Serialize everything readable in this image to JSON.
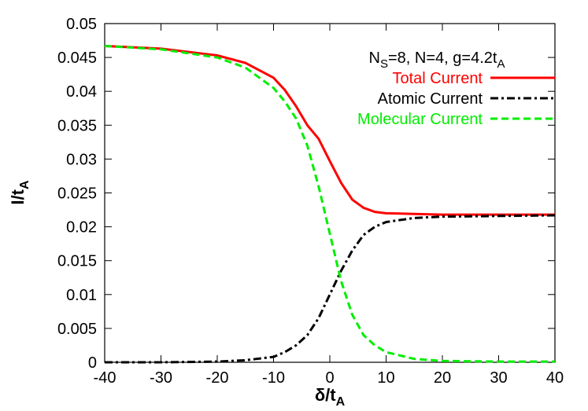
{
  "chart_data": {
    "type": "line",
    "annotation": [
      "N",
      "S",
      "=8, N=4, g=4.2t",
      "A"
    ],
    "xlabel": [
      "δ/t",
      "A"
    ],
    "ylabel": [
      "I/t",
      "A"
    ],
    "x": [
      -40,
      -30,
      -20,
      -15,
      -10,
      -8,
      -6,
      -4,
      -2,
      0,
      2,
      4,
      6,
      8,
      10,
      15,
      20,
      30,
      40
    ],
    "series": [
      {
        "name": "Total Current",
        "color": "#ff0000",
        "dash": "solid",
        "values": [
          0.0467,
          0.0463,
          0.0453,
          0.0442,
          0.042,
          0.0402,
          0.0378,
          0.035,
          0.033,
          0.0297,
          0.0265,
          0.024,
          0.0228,
          0.0222,
          0.022,
          0.0219,
          0.0218,
          0.0218,
          0.0218
        ]
      },
      {
        "name": "Atomic Current",
        "color": "#000000",
        "dash": "dashdot",
        "values": [
          0,
          0,
          0.0001,
          0.0003,
          0.0008,
          0.0015,
          0.0025,
          0.004,
          0.0065,
          0.01,
          0.0135,
          0.0165,
          0.0188,
          0.02,
          0.0207,
          0.0213,
          0.0215,
          0.0216,
          0.0217
        ]
      },
      {
        "name": "Molecular Current",
        "color": "#00ee00",
        "dash": "dashed",
        "values": [
          0.0467,
          0.0462,
          0.045,
          0.0435,
          0.0405,
          0.0385,
          0.036,
          0.032,
          0.026,
          0.019,
          0.012,
          0.007,
          0.004,
          0.0025,
          0.0015,
          0.0005,
          0.0002,
          0.0001,
          0.0001
        ]
      }
    ],
    "xlim": [
      -40,
      40
    ],
    "xticks": [
      -40,
      -30,
      -20,
      -10,
      0,
      10,
      20,
      30,
      40
    ],
    "ylim": [
      0,
      0.05
    ],
    "yticks": [
      0,
      0.005,
      0.01,
      0.015,
      0.02,
      0.025,
      0.03,
      0.035,
      0.04,
      0.045,
      0.05
    ],
    "legend": "top-right",
    "grid": false
  }
}
